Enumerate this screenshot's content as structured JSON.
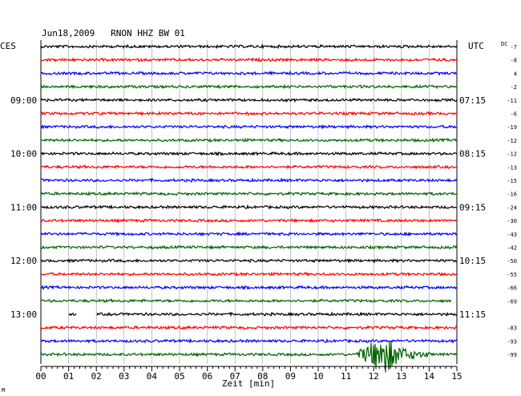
{
  "chart_data": {
    "type": "line",
    "title": "Jun18,2009   RNON HHZ BW 01",
    "left_header": "CES",
    "right_header": "UTC",
    "dc_header": "DC",
    "xlabel": "Zeit [min]",
    "xlim": [
      0,
      15
    ],
    "x_ticks": [
      "00",
      "01",
      "02",
      "03",
      "04",
      "05",
      "06",
      "07",
      "08",
      "09",
      "10",
      "11",
      "12",
      "13",
      "14",
      "15"
    ],
    "trace_interval_min": 15,
    "trace_colors": [
      "#000000",
      "#ff0000",
      "#0000ff",
      "#006400"
    ],
    "left_time_labels": [
      {
        "label": "09:00",
        "trace": 4
      },
      {
        "label": "10:00",
        "trace": 8
      },
      {
        "label": "11:00",
        "trace": 12
      },
      {
        "label": "12:00",
        "trace": 16
      },
      {
        "label": "13:00",
        "trace": 20
      }
    ],
    "right_time_labels": [
      {
        "label": "07:15",
        "trace": 4
      },
      {
        "label": "08:15",
        "trace": 8
      },
      {
        "label": "09:15",
        "trace": 12
      },
      {
        "label": "10:15",
        "trace": 16
      },
      {
        "label": "11:15",
        "trace": 20
      }
    ],
    "dc_offsets": [
      "-7",
      "-8",
      "4",
      "-2",
      "-11",
      "-6",
      "-19",
      "-12",
      "-12",
      "-13",
      "-15",
      "-16",
      "-24",
      "-30",
      "-43",
      "-42",
      "-50",
      "-55",
      "-66",
      "-69",
      "",
      "-83",
      "-93",
      "-99"
    ],
    "gaps": [
      {
        "trace": 19,
        "from_min": 14.8,
        "to_min": 15
      },
      {
        "trace": 20,
        "from_min": 0,
        "to_min": 1.0
      },
      {
        "trace": 20,
        "from_min": 1.3,
        "to_min": 2.0
      }
    ],
    "events": [
      {
        "trace": 23,
        "onset_min": 11.3,
        "peak_min": 12.4,
        "end_min": 14.1,
        "description": "earthquake signal"
      }
    ],
    "bottom_mark": "M"
  }
}
